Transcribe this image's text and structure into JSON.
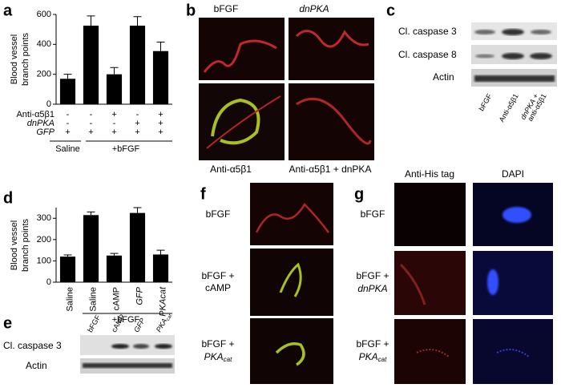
{
  "chart_data": [
    {
      "type": "bar",
      "panel": "a",
      "ylabel": [
        "Blood vessel",
        "branch points"
      ],
      "categories": [
        null,
        null,
        null,
        null,
        null
      ],
      "series": [
        {
          "color": "#000000",
          "values": [
            170,
            525,
            200,
            525,
            355
          ],
          "errors": [
            30,
            65,
            45,
            60,
            60
          ]
        }
      ],
      "ylim": [
        0,
        600
      ],
      "yticks": [
        0,
        200,
        400,
        600
      ],
      "conditions": [
        {
          "label": "Anti-α5β1",
          "values": [
            "-",
            "-",
            "+",
            "-",
            "+"
          ]
        },
        {
          "label": "dnPKA",
          "values": [
            "-",
            "-",
            "-",
            "+",
            "+"
          ]
        },
        {
          "label": "GFP",
          "values": [
            "+",
            "+",
            "+",
            "+",
            "+"
          ]
        }
      ],
      "groups": [
        "Saline",
        "+bFGF"
      ]
    },
    {
      "type": "bar",
      "panel": "d",
      "ylabel": [
        "Blood vessel",
        "branch points"
      ],
      "categories": [
        "Saline",
        "Saline",
        "cAMP",
        "GFP",
        "PKAcat"
      ],
      "series": [
        {
          "color": "#000000",
          "values": [
            120,
            315,
            125,
            325,
            130
          ],
          "errors": [
            8,
            15,
            10,
            25,
            20
          ]
        }
      ],
      "ylim": [
        0,
        350
      ],
      "yticks": [
        0,
        100,
        200,
        300
      ],
      "groups": [
        "+bFGF"
      ]
    }
  ],
  "panel_b": {
    "label": "b",
    "top": [
      "bFGF",
      "dnPKA"
    ],
    "bottom": [
      "Anti-α5β1",
      "Anti-α5β1 + dnPKA"
    ]
  },
  "panel_c": {
    "label": "c",
    "rows": [
      "Cl. caspase 3",
      "Cl. caspase 8",
      "Actin"
    ],
    "columns": [
      "bFGF",
      "Anti-α5β1",
      "dnPKA +",
      "anti-α5β1"
    ]
  },
  "panel_e": {
    "label": "e",
    "rows": [
      "Cl. caspase 3",
      "Actin"
    ],
    "columns": [
      "bFGF",
      "cAMP",
      "GFP",
      "PKA",
      "cat"
    ]
  },
  "panel_f": {
    "label": "f",
    "rows": [
      "bFGF",
      "bFGF +",
      "cAMP",
      "bFGF +",
      "PKA",
      "cat"
    ]
  },
  "panel_g": {
    "label": "g",
    "headers": [
      "Anti-His tag",
      "DAPI"
    ],
    "rows": [
      "bFGF",
      "bFGF +",
      "dnPKA",
      "bFGF +",
      "PKA",
      "cat"
    ]
  }
}
